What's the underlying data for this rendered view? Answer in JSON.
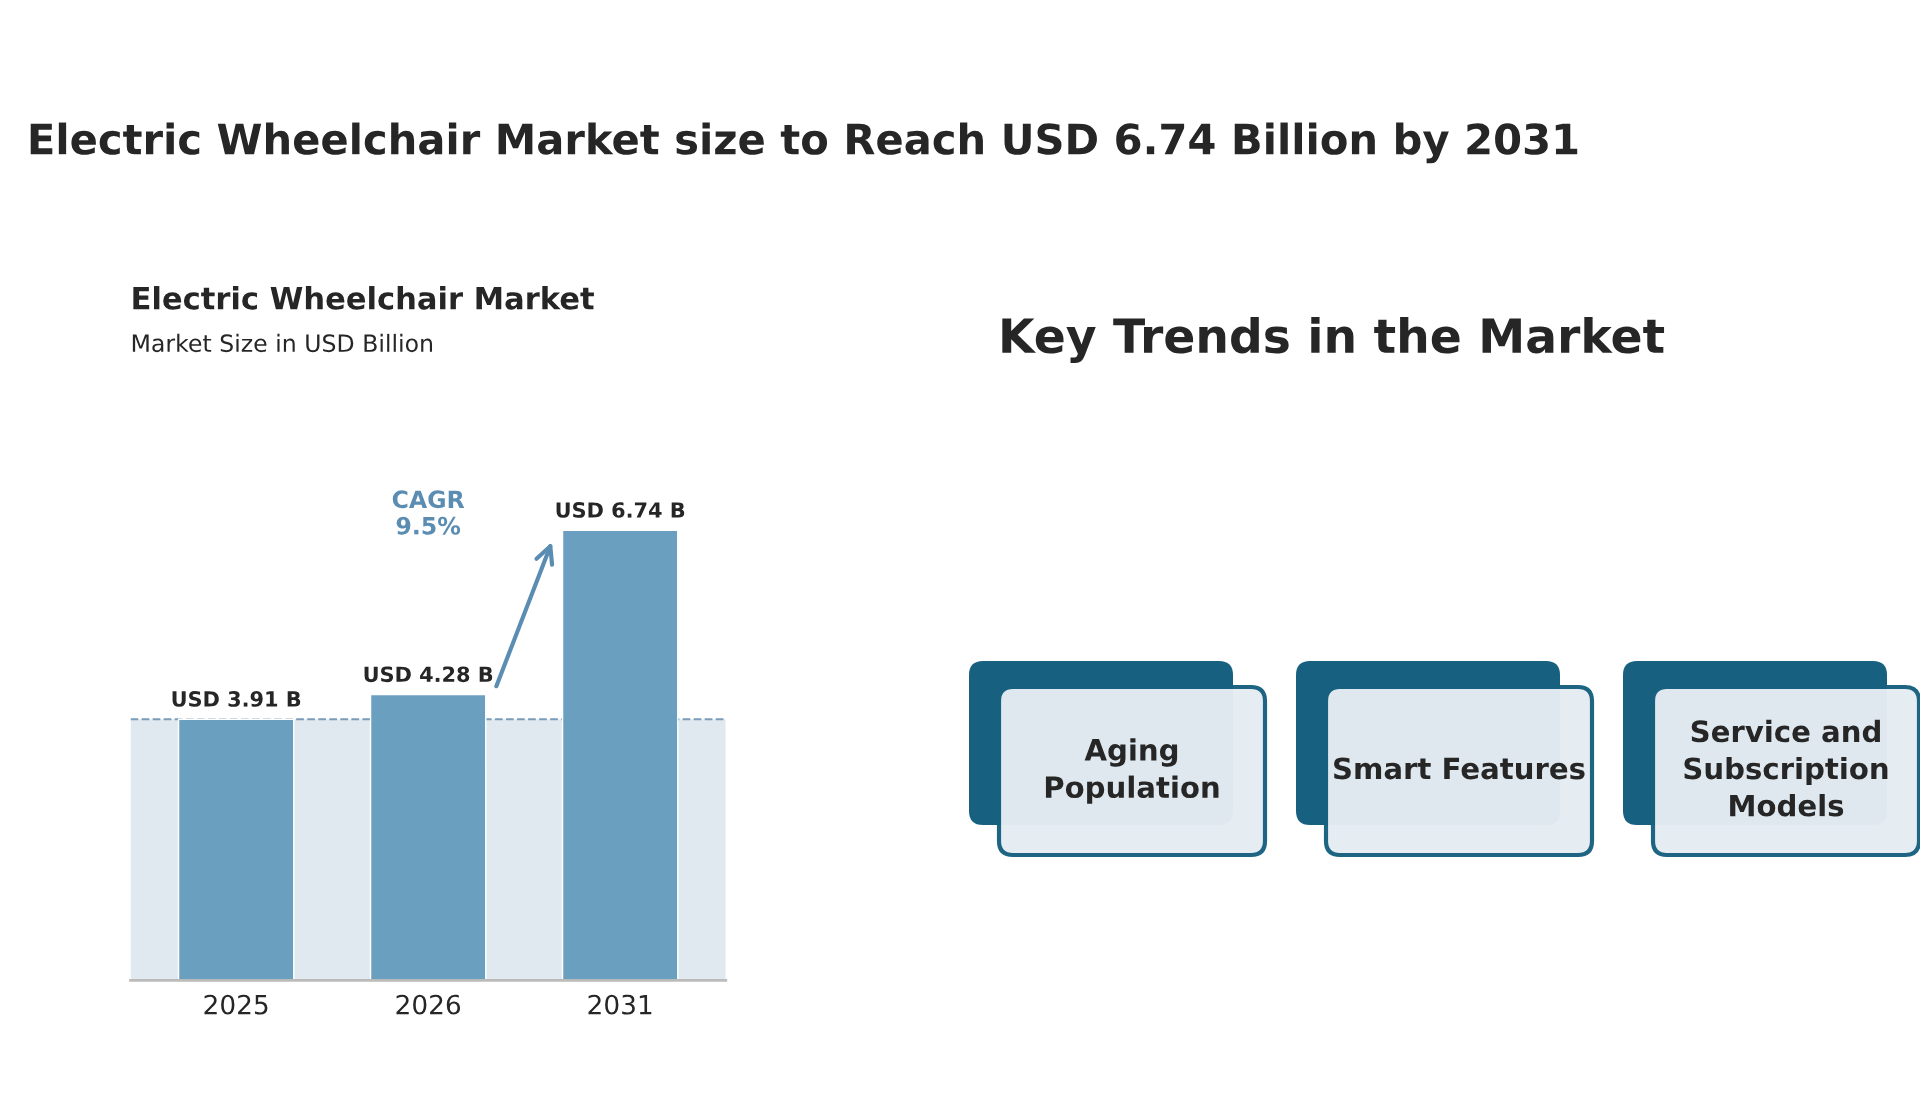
{
  "chart_data": [
    {
      "type": "other",
      "title": "Electric Wheelchair Market size to Reach USD 6.74 Billion by 2031"
    },
    {
      "type": "bar",
      "title": "Electric Wheelchair Market",
      "subtitle": "Market Size in USD Billion",
      "categories": [
        "2025",
        "2026",
        "2031"
      ],
      "values": [
        3.91,
        4.28,
        6.74
      ],
      "color": "#6a9fc0",
      "value_labels": [
        "USD 3.91 B",
        "USD 4.28 B",
        "USD 6.74 B"
      ],
      "ref_lines": [
        {
          "axis": "y",
          "value": 3.91,
          "color": "#7a9cb8",
          "line_style": "dashed"
        }
      ],
      "bands": [
        {
          "axis": "y",
          "from": 0,
          "to": 3.91,
          "color": "#e1e9f0"
        }
      ],
      "annotations": [
        "CAGR\n9.5%"
      ],
      "grid": false,
      "legend": false
    },
    {
      "type": "other",
      "title": "Key Trends in the Market",
      "annotations": [
        "Aging\nPopulation",
        "Smart Features",
        "Service and\nSubscription\nModels"
      ]
    }
  ]
}
